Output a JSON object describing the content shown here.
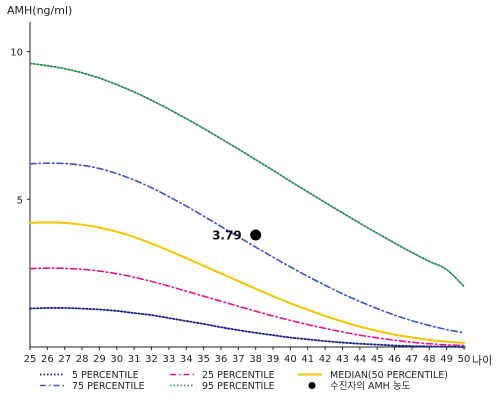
{
  "chart_data": {
    "type": "line",
    "ylabel": "AMH(ng/ml)",
    "xlabel": "나이",
    "xlim": [
      25,
      50
    ],
    "ylim": [
      0,
      11
    ],
    "x": [
      25,
      26,
      27,
      28,
      29,
      30,
      31,
      32,
      33,
      34,
      35,
      36,
      37,
      38,
      39,
      40,
      41,
      42,
      43,
      44,
      45,
      46,
      47,
      48,
      49,
      50
    ],
    "x_ticks": [
      "25",
      "26",
      "27",
      "28",
      "29",
      "30",
      "31",
      "32",
      "33",
      "34",
      "35",
      "36",
      "37",
      "38",
      "39",
      "40",
      "41",
      "42",
      "43",
      "44",
      "45",
      "46",
      "47",
      "48",
      "49",
      "50"
    ],
    "y_ticks": [
      "5",
      "10"
    ],
    "y_tick_values": [
      5,
      10
    ],
    "series": [
      {
        "name": "5 PERCENTILE",
        "color": "#1a1a8c",
        "dash": "dotted",
        "values": [
          1.3,
          1.32,
          1.32,
          1.3,
          1.27,
          1.22,
          1.15,
          1.08,
          0.98,
          0.88,
          0.78,
          0.67,
          0.57,
          0.48,
          0.4,
          0.32,
          0.26,
          0.2,
          0.15,
          0.11,
          0.08,
          0.05,
          0.03,
          0.02,
          0.01,
          0.0
        ]
      },
      {
        "name": "25 PERCENTILE",
        "color": "#e0158a",
        "dash": "dashdot",
        "values": [
          2.65,
          2.67,
          2.66,
          2.63,
          2.57,
          2.48,
          2.36,
          2.22,
          2.06,
          1.89,
          1.72,
          1.55,
          1.38,
          1.21,
          1.05,
          0.9,
          0.76,
          0.63,
          0.51,
          0.4,
          0.31,
          0.23,
          0.16,
          0.11,
          0.07,
          0.05
        ]
      },
      {
        "name": "MEDIAN(50 PERCENTILE)",
        "color": "#f2c500",
        "dash": "solid",
        "values": [
          4.2,
          4.22,
          4.2,
          4.14,
          4.04,
          3.9,
          3.72,
          3.5,
          3.26,
          3.01,
          2.75,
          2.49,
          2.23,
          1.97,
          1.72,
          1.48,
          1.26,
          1.05,
          0.86,
          0.69,
          0.55,
          0.42,
          0.32,
          0.24,
          0.18,
          0.14
        ]
      },
      {
        "name": "75 PERCENTILE",
        "color": "#3a55c8",
        "dash": "dashdot",
        "values": [
          6.2,
          6.22,
          6.21,
          6.15,
          6.04,
          5.87,
          5.65,
          5.39,
          5.09,
          4.77,
          4.43,
          4.08,
          3.73,
          3.38,
          3.04,
          2.71,
          2.39,
          2.09,
          1.8,
          1.54,
          1.3,
          1.08,
          0.89,
          0.73,
          0.59,
          0.48
        ]
      },
      {
        "name": "95 PERCENTILE",
        "color": "#2e8b57",
        "dash": "dotted",
        "values": [
          9.6,
          9.52,
          9.42,
          9.28,
          9.1,
          8.88,
          8.63,
          8.35,
          8.05,
          7.73,
          7.4,
          7.05,
          6.7,
          6.34,
          5.98,
          5.61,
          5.25,
          4.89,
          4.54,
          4.19,
          3.85,
          3.52,
          3.2,
          2.9,
          2.62,
          2.05
        ]
      }
    ],
    "marker": {
      "name": "수진자의 AMH 농도",
      "x": 38,
      "y": 3.79,
      "label": "3.79",
      "color": "#000000"
    },
    "legend_position": "bottom",
    "grid": false
  }
}
